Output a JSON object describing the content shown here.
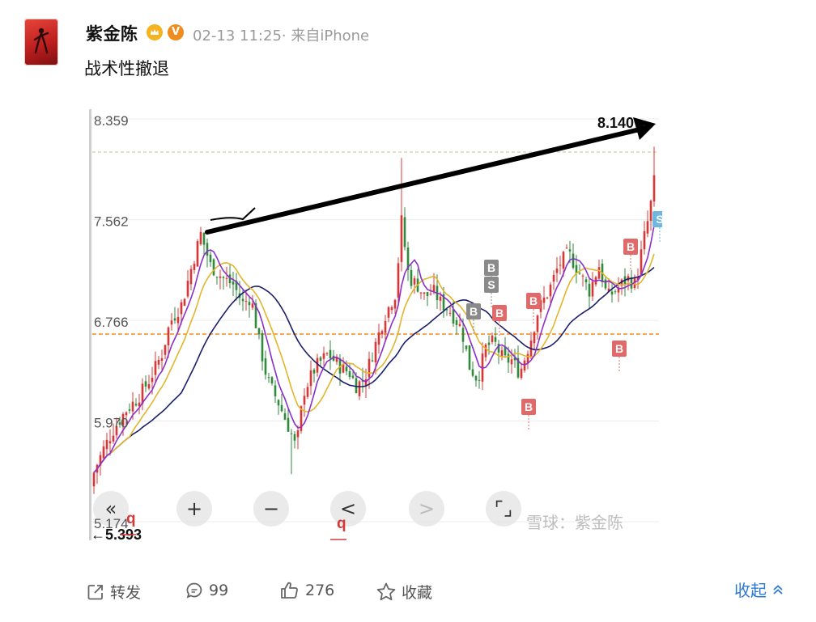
{
  "post": {
    "author": "紫金陈",
    "timestamp": "02-13 11:25",
    "source": "· 来自iPhone",
    "text": "战术性撤退"
  },
  "chart_data": {
    "type": "candlestick",
    "y_tick_labels": [
      "8.359",
      "7.562",
      "6.766",
      "5.970",
      "5.174"
    ],
    "ylim": [
      5.174,
      8.359
    ],
    "high_label": "8.140→",
    "low_label": "←5.393",
    "q_markers": [
      "q",
      "q"
    ],
    "trade_markers": [
      "B",
      "S",
      "B",
      "B",
      "B",
      "B",
      "B",
      "B",
      "S"
    ],
    "controls": [
      "«",
      "+",
      "−",
      "<",
      ">",
      "⌜⌟"
    ],
    "watermark": "雪球：紫金陈",
    "colors": {
      "up": "#e03434",
      "down": "#2f8a3a",
      "ma_dark": "#1c1f6b",
      "ma_purple": "#8b2fc9",
      "ma_gold": "#e2b52d",
      "ref_line": "#f08a1d",
      "sell_badge": "#8a8a8a",
      "buy_badge": "#e06a6a"
    }
  },
  "footer": {
    "repost": "转发",
    "comments": "99",
    "likes": "276",
    "favorite": "收藏",
    "collapse": "收起"
  }
}
